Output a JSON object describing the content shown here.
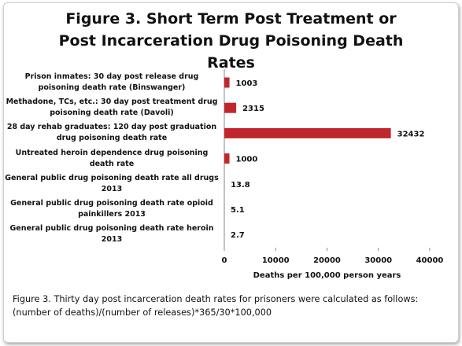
{
  "chart_data": {
    "type": "barh",
    "title": "Figure 3. Short Term Post Treatment or Post Incarceration Drug Poisoning Death Rates",
    "categories": [
      "Prison inmates: 30 day post release drug poisoning death rate (Binswanger)",
      "Methadone, TCs, etc.: 30 day post treatment drug poisoning death rate (Davoli)",
      "28 day rehab graduates: 120 day post graduation drug poisoning death rate",
      "Untreated heroin dependence drug poisoning death rate",
      "General public drug poisoning death rate all drugs 2013",
      "General public drug poisoning death rate opioid painkillers 2013",
      "General public drug poisoning death rate heroin 2013"
    ],
    "values": [
      1003,
      2315,
      32432,
      1000,
      13.8,
      5.1,
      2.7
    ],
    "color": "#c0272d",
    "xlabel": "Deaths per 100,000 person years",
    "xlim": [
      0,
      40000
    ],
    "xticks": [
      0,
      10000,
      20000,
      30000,
      40000
    ],
    "caption": "Figure 3. Thirty day post incarceration death rates for prisoners were calculated as follows: (number of deaths)/(number of releases)*365/30*100,000"
  }
}
